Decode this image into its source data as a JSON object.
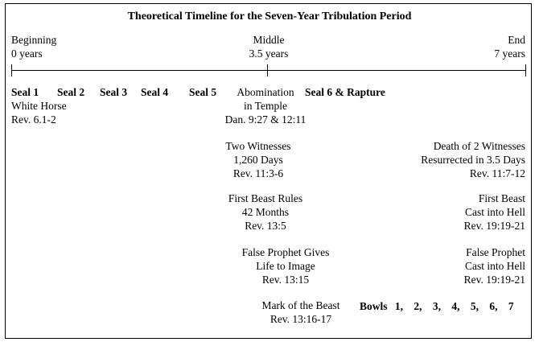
{
  "title": "Theoretical Timeline for the Seven-Year Tribulation Period",
  "markers": {
    "beginning": {
      "label": "Beginning",
      "sub": "0 years"
    },
    "middle": {
      "label": "Middle",
      "sub": "3.5 years"
    },
    "end": {
      "label": "End",
      "sub": "7 years"
    }
  },
  "seals": [
    "Seal 1",
    "Seal 2",
    "Seal 3",
    "Seal 4",
    "Seal 5"
  ],
  "seal1_detail": [
    "White Horse",
    "Rev. 6.1-2"
  ],
  "abomination": [
    "Abomination",
    "in Temple",
    "Dan. 9:27 & 12:11"
  ],
  "seal6": "Seal 6 & Rapture",
  "two_witnesses": [
    "Two Witnesses",
    "1,260 Days",
    "Rev. 11:3-6"
  ],
  "death_witnesses": [
    "Death of 2 Witnesses",
    "Resurrected in 3.5 Days",
    "Rev. 11:7-12"
  ],
  "first_beast_rules": [
    "First Beast Rules",
    "42 Months",
    "Rev. 13:5"
  ],
  "first_beast_hell": [
    "First Beast",
    "Cast into Hell",
    "Rev. 19:19-21"
  ],
  "false_prophet_gives": [
    "False Prophet Gives",
    "Life to Image",
    "Rev. 13:15"
  ],
  "false_prophet_hell": [
    "False Prophet",
    "Cast into Hell",
    "Rev. 19:19-21"
  ],
  "mark_beast": [
    "Mark of the Beast",
    "Rev. 13:16-17"
  ],
  "bowls": {
    "label": "Bowls",
    "numbers": [
      "1,",
      "2,",
      "3,",
      "4,",
      "5,",
      "6,",
      "7"
    ]
  }
}
